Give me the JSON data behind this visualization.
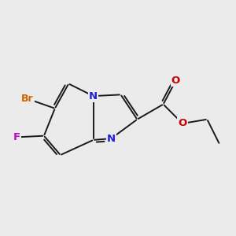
{
  "background_color": "#ebebeb",
  "bond_color": "#1a1a1a",
  "atom_colors": {
    "N": "#2020e0",
    "O": "#cc0000",
    "Br": "#cc6600",
    "F": "#cc00cc"
  },
  "font_size": 9.5,
  "lw": 1.4
}
